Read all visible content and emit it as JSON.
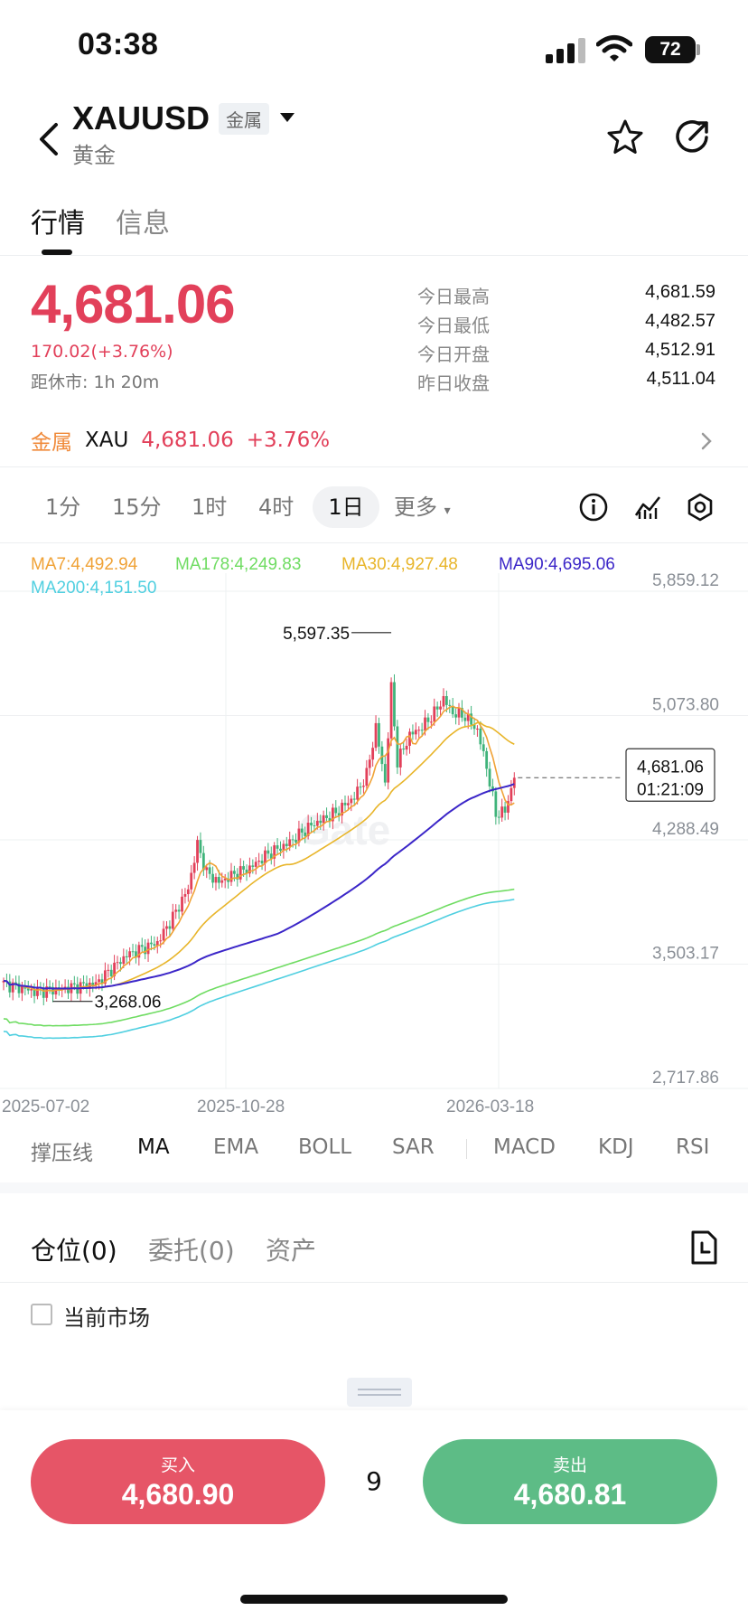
{
  "status_bar": {
    "time": "03:38",
    "battery": "72"
  },
  "header": {
    "symbol": "XAUUSD",
    "category_badge": "金属",
    "name": "黄金"
  },
  "tabs": [
    {
      "label": "行情",
      "active": true
    },
    {
      "label": "信息",
      "active": false
    }
  ],
  "quote": {
    "price": "4,681.06",
    "change": "170.02(+3.76%)",
    "close_in": "距休市: 1h 20m",
    "stats": [
      {
        "label": "今日最高",
        "value": "4,681.59"
      },
      {
        "label": "今日最低",
        "value": "4,482.57"
      },
      {
        "label": "今日开盘",
        "value": "4,512.91"
      },
      {
        "label": "昨日收盘",
        "value": "4,511.04"
      }
    ]
  },
  "related": {
    "category": "金属",
    "symbol": "XAU",
    "price": "4,681.06",
    "change": "+3.76%"
  },
  "periods": [
    "1分",
    "15分",
    "1时",
    "4时",
    "1日",
    "更多"
  ],
  "active_period": "1日",
  "ma_legend": [
    {
      "text": "MA7:4,492.94",
      "color": "#f0a236"
    },
    {
      "text": "MA178:4,249.83",
      "color": "#6fdc62"
    },
    {
      "text": "MA30:4,927.48",
      "color": "#e8b52a"
    },
    {
      "text": "MA90:4,695.06",
      "color": "#3b26c8"
    },
    {
      "text": "MA200:4,151.50",
      "color": "#4fcfe0"
    }
  ],
  "chart_data": {
    "type": "candlestick",
    "y_ticks": [
      "5,859.12",
      "5,073.80",
      "4,288.49",
      "3,503.17",
      "2,717.86"
    ],
    "x_ticks": [
      "2025-07-02",
      "2025-10-28",
      "2026-03-18"
    ],
    "ylim": [
      2717.86,
      5859.12
    ],
    "high_label": "5,597.35",
    "low_label": "3,268.06",
    "current_price_label": "4,681.06",
    "countdown": "01:21:09",
    "watermark": "Gate",
    "closes_anchor": [
      [
        0,
        3380
      ],
      [
        10,
        3330
      ],
      [
        20,
        3350
      ],
      [
        30,
        3380
      ],
      [
        40,
        3560
      ],
      [
        50,
        3640
      ],
      [
        55,
        3800
      ],
      [
        60,
        3980
      ],
      [
        63,
        4260
      ],
      [
        66,
        4080
      ],
      [
        70,
        4020
      ],
      [
        76,
        4080
      ],
      [
        80,
        4110
      ],
      [
        86,
        4200
      ],
      [
        92,
        4260
      ],
      [
        100,
        4380
      ],
      [
        108,
        4460
      ],
      [
        114,
        4560
      ],
      [
        118,
        4700
      ],
      [
        121,
        5000
      ],
      [
        124,
        4650
      ],
      [
        126,
        5250
      ],
      [
        128,
        4780
      ],
      [
        132,
        4950
      ],
      [
        136,
        5000
      ],
      [
        140,
        5090
      ],
      [
        143,
        5180
      ],
      [
        146,
        5090
      ],
      [
        150,
        5070
      ],
      [
        154,
        4980
      ],
      [
        157,
        4750
      ],
      [
        160,
        4450
      ],
      [
        163,
        4470
      ],
      [
        166,
        4681
      ]
    ]
  },
  "indicators": [
    "撑压线",
    "MA",
    "EMA",
    "BOLL",
    "SAR",
    "MACD",
    "KDJ",
    "RSI"
  ],
  "active_indicator": "MA",
  "position_tabs": [
    "仓位(0)",
    "委托(0)",
    "资产"
  ],
  "current_market_label": "当前市场",
  "trade": {
    "buy_label": "买入",
    "buy_price": "4,680.90",
    "spread": "9",
    "sell_label": "卖出",
    "sell_price": "4,680.81"
  }
}
